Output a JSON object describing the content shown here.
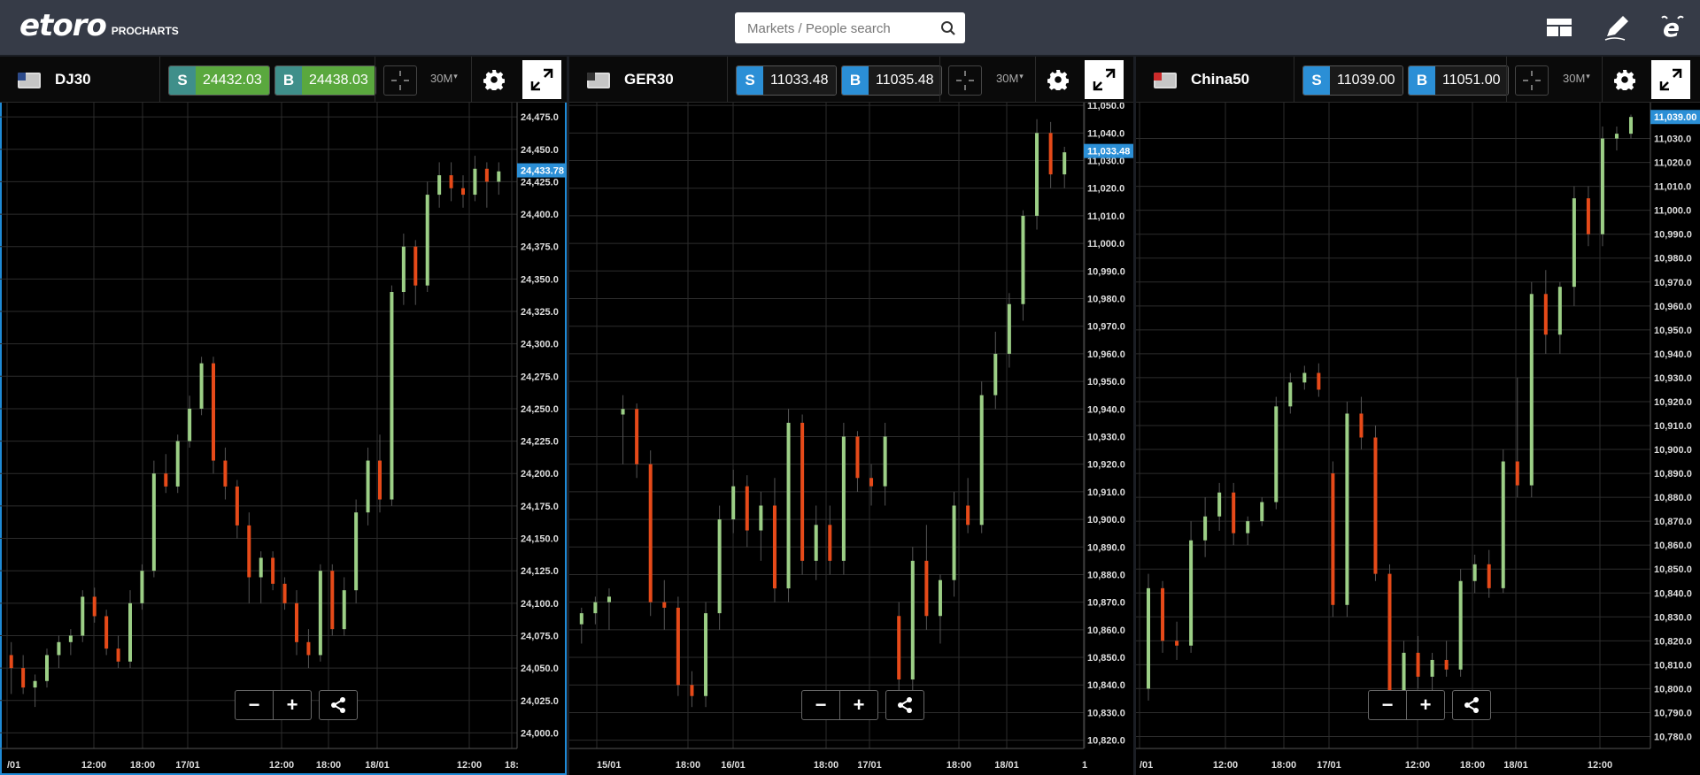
{
  "app": {
    "logo_text": "etoro",
    "logo_sub": "PROCHARTS",
    "search_placeholder": "Markets / People search"
  },
  "colors": {
    "up": "#9ccf86",
    "down": "#e64a19",
    "accent": "#1e8ad6",
    "sell_green": "#5aa83e",
    "blue": "#2b8fd6"
  },
  "panels": [
    {
      "name": "DJ30",
      "flag": "us-flag-icon",
      "sell_label": "S",
      "sell": "24432.03",
      "buy_label": "B",
      "buy": "24438.03",
      "timeframe": "30M",
      "price_tag": "24,433.78",
      "price_value": 24433.78,
      "y_ticks": [
        "24,475.0",
        "24,450.0",
        "24,425.0",
        "24,400.0",
        "24,375.0",
        "24,350.0",
        "24,325.0",
        "24,300.0",
        "24,275.0",
        "24,250.0",
        "24,225.0",
        "24,200.0",
        "24,175.0",
        "24,150.0",
        "24,125.0",
        "24,100.0",
        "24,075.0",
        "24,050.0",
        "24,025.0",
        "24,000.0"
      ],
      "x_ticks": [
        "/01",
        "12:00",
        "18:00",
        "17/01",
        "12:00",
        "18:00",
        "18/01",
        "12:00",
        "18:"
      ],
      "chart_data": {
        "type": "candlestick",
        "ylim": [
          23988,
          24486
        ],
        "ohlc": [
          [
            24060,
            24070,
            24030,
            24050
          ],
          [
            24050,
            24060,
            24030,
            24035
          ],
          [
            24035,
            24045,
            24020,
            24040
          ],
          [
            24040,
            24065,
            24035,
            24060
          ],
          [
            24060,
            24075,
            24050,
            24070
          ],
          [
            24070,
            24080,
            24060,
            24075
          ],
          [
            24075,
            24110,
            24070,
            24105
          ],
          [
            24105,
            24112,
            24085,
            24090
          ],
          [
            24090,
            24095,
            24060,
            24065
          ],
          [
            24065,
            24075,
            24050,
            24055
          ],
          [
            24055,
            24110,
            24050,
            24100
          ],
          [
            24100,
            24130,
            24095,
            24125
          ],
          [
            24125,
            24210,
            24120,
            24200
          ],
          [
            24200,
            24215,
            24185,
            24190
          ],
          [
            24190,
            24230,
            24185,
            24225
          ],
          [
            24225,
            24260,
            24220,
            24250
          ],
          [
            24250,
            24290,
            24245,
            24285
          ],
          [
            24285,
            24290,
            24200,
            24210
          ],
          [
            24210,
            24220,
            24180,
            24190
          ],
          [
            24190,
            24195,
            24150,
            24160
          ],
          [
            24160,
            24170,
            24100,
            24120
          ],
          [
            24120,
            24140,
            24100,
            24135
          ],
          [
            24135,
            24140,
            24110,
            24115
          ],
          [
            24115,
            24120,
            24095,
            24100
          ],
          [
            24100,
            24110,
            24060,
            24070
          ],
          [
            24070,
            24080,
            24050,
            24060
          ],
          [
            24060,
            24130,
            24055,
            24125
          ],
          [
            24125,
            24130,
            24075,
            24080
          ],
          [
            24080,
            24120,
            24075,
            24110
          ],
          [
            24110,
            24180,
            24100,
            24170
          ],
          [
            24170,
            24220,
            24160,
            24210
          ],
          [
            24210,
            24230,
            24170,
            24180
          ],
          [
            24180,
            24345,
            24175,
            24340
          ],
          [
            24340,
            24385,
            24330,
            24375
          ],
          [
            24375,
            24380,
            24330,
            24345
          ],
          [
            24345,
            24425,
            24340,
            24415
          ],
          [
            24415,
            24440,
            24405,
            24430
          ],
          [
            24430,
            24440,
            24410,
            24420
          ],
          [
            24420,
            24430,
            24405,
            24415
          ],
          [
            24415,
            24445,
            24410,
            24435
          ],
          [
            24435,
            24440,
            24405,
            24425
          ],
          [
            24425,
            24440,
            24415,
            24433
          ]
        ]
      }
    },
    {
      "name": "GER30",
      "flag": "de-flag-icon",
      "sell_label": "S",
      "sell": "11033.48",
      "buy_label": "B",
      "buy": "11035.48",
      "timeframe": "30M",
      "price_tag": "11,033.48",
      "price_value": 11033.48,
      "y_ticks": [
        "11,050.0",
        "11,040.0",
        "11,030.0",
        "11,020.0",
        "11,010.0",
        "11,000.0",
        "10,990.0",
        "10,980.0",
        "10,970.0",
        "10,960.0",
        "10,950.0",
        "10,940.0",
        "10,930.0",
        "10,920.0",
        "10,910.0",
        "10,900.0",
        "10,890.0",
        "10,880.0",
        "10,870.0",
        "10,860.0",
        "10,850.0",
        "10,840.0",
        "10,830.0",
        "10,820.0"
      ],
      "x_ticks": [
        "15/01",
        "18:00",
        "16/01",
        "18:00",
        "17/01",
        "18:00",
        "18/01",
        "1"
      ],
      "chart_data": {
        "type": "candlestick",
        "ylim": [
          10817,
          11051
        ],
        "ohlc": [
          [
            10862,
            10868,
            10855,
            10866
          ],
          [
            10866,
            10872,
            10862,
            10870
          ],
          [
            10870,
            10875,
            10860,
            10872
          ],
          [
            10938,
            10945,
            10920,
            10940
          ],
          [
            10940,
            10942,
            10915,
            10920
          ],
          [
            10920,
            10925,
            10865,
            10870
          ],
          [
            10870,
            10878,
            10860,
            10868
          ],
          [
            10868,
            10872,
            10836,
            10840
          ],
          [
            10840,
            10845,
            10832,
            10836
          ],
          [
            10836,
            10870,
            10832,
            10866
          ],
          [
            10866,
            10905,
            10860,
            10900
          ],
          [
            10900,
            10918,
            10895,
            10912
          ],
          [
            10912,
            10916,
            10890,
            10896
          ],
          [
            10896,
            10910,
            10885,
            10905
          ],
          [
            10905,
            10915,
            10870,
            10875
          ],
          [
            10875,
            10940,
            10870,
            10935
          ],
          [
            10935,
            10938,
            10880,
            10885
          ],
          [
            10885,
            10905,
            10878,
            10898
          ],
          [
            10898,
            10905,
            10880,
            10885
          ],
          [
            10885,
            10935,
            10880,
            10930
          ],
          [
            10930,
            10932,
            10910,
            10915
          ],
          [
            10915,
            10920,
            10905,
            10912
          ],
          [
            10912,
            10935,
            10905,
            10930
          ],
          [
            10865,
            10870,
            10838,
            10842
          ],
          [
            10842,
            10890,
            10838,
            10885
          ],
          [
            10885,
            10898,
            10860,
            10865
          ],
          [
            10865,
            10880,
            10855,
            10878
          ],
          [
            10878,
            10910,
            10872,
            10905
          ],
          [
            10905,
            10915,
            10895,
            10898
          ],
          [
            10898,
            10950,
            10895,
            10945
          ],
          [
            10945,
            10968,
            10940,
            10960
          ],
          [
            10960,
            10982,
            10955,
            10978
          ],
          [
            10978,
            11012,
            10972,
            11010
          ],
          [
            11010,
            11045,
            11005,
            11040
          ],
          [
            11040,
            11044,
            11020,
            11025
          ],
          [
            11025,
            11035,
            11020,
            11033
          ]
        ]
      }
    },
    {
      "name": "China50",
      "flag": "cn-flag-icon",
      "sell_label": "S",
      "sell": "11039.00",
      "buy_label": "B",
      "buy": "11051.00",
      "timeframe": "30M",
      "price_tag": "11,039.00",
      "price_value": 11039.0,
      "y_ticks": [
        "11,030.0",
        "11,020.0",
        "11,010.0",
        "11,000.0",
        "10,990.0",
        "10,980.0",
        "10,970.0",
        "10,960.0",
        "10,950.0",
        "10,940.0",
        "10,930.0",
        "10,920.0",
        "10,910.0",
        "10,900.0",
        "10,890.0",
        "10,880.0",
        "10,870.0",
        "10,860.0",
        "10,850.0",
        "10,840.0",
        "10,830.0",
        "10,820.0",
        "10,810.0",
        "10,800.0",
        "10,790.0",
        "10,780.0"
      ],
      "x_ticks": [
        "/01",
        "12:00",
        "18:00",
        "17/01",
        "12:00",
        "18:00",
        "18/01",
        "12:00"
      ],
      "chart_data": {
        "type": "candlestick",
        "ylim": [
          10775,
          11045
        ],
        "ohlc": [
          [
            10800,
            10848,
            10795,
            10842
          ],
          [
            10842,
            10845,
            10815,
            10820
          ],
          [
            10820,
            10828,
            10812,
            10818
          ],
          [
            10818,
            10870,
            10815,
            10862
          ],
          [
            10862,
            10880,
            10855,
            10872
          ],
          [
            10872,
            10886,
            10866,
            10882
          ],
          [
            10882,
            10886,
            10860,
            10865
          ],
          [
            10865,
            10872,
            10860,
            10870
          ],
          [
            10870,
            10880,
            10868,
            10878
          ],
          [
            10878,
            10922,
            10875,
            10918
          ],
          [
            10918,
            10932,
            10915,
            10928
          ],
          [
            10928,
            10935,
            10925,
            10932
          ],
          [
            10932,
            10936,
            10922,
            10925
          ],
          [
            10890,
            10895,
            10830,
            10835
          ],
          [
            10835,
            10920,
            10830,
            10915
          ],
          [
            10915,
            10922,
            10900,
            10905
          ],
          [
            10905,
            10910,
            10845,
            10848
          ],
          [
            10848,
            10852,
            10790,
            10795
          ],
          [
            10795,
            10820,
            10788,
            10815
          ],
          [
            10815,
            10822,
            10800,
            10805
          ],
          [
            10805,
            10815,
            10798,
            10812
          ],
          [
            10812,
            10820,
            10805,
            10808
          ],
          [
            10808,
            10850,
            10805,
            10845
          ],
          [
            10845,
            10856,
            10840,
            10852
          ],
          [
            10852,
            10858,
            10838,
            10842
          ],
          [
            10842,
            10900,
            10840,
            10895
          ],
          [
            10895,
            10930,
            10880,
            10885
          ],
          [
            10885,
            10970,
            10880,
            10965
          ],
          [
            10965,
            10975,
            10940,
            10948
          ],
          [
            10948,
            10970,
            10940,
            10968
          ],
          [
            10968,
            11010,
            10960,
            11005
          ],
          [
            11005,
            11010,
            10985,
            10990
          ],
          [
            10990,
            11035,
            10985,
            11030
          ],
          [
            11030,
            11035,
            11025,
            11032
          ],
          [
            11032,
            11040,
            11030,
            11039
          ]
        ]
      }
    }
  ]
}
